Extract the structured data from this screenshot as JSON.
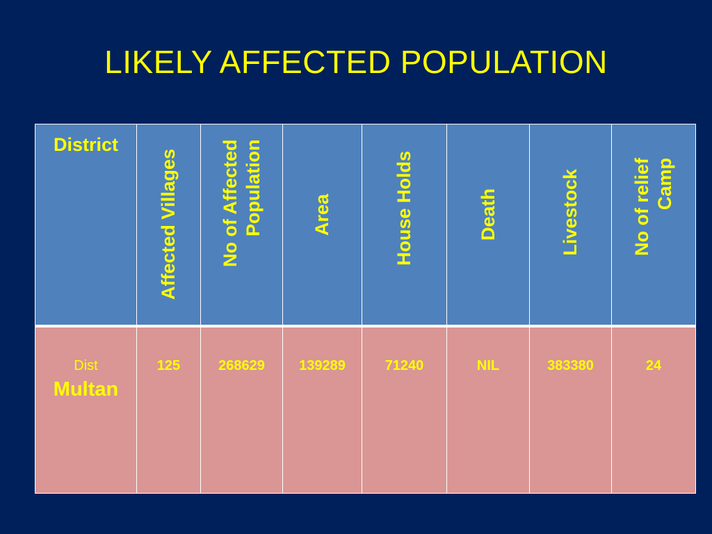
{
  "slide": {
    "title": "LIKELY AFFECTED POPULATION"
  },
  "table": {
    "headers": [
      "District",
      "Affected Villages",
      "No of Affected Population",
      "Area",
      "House Holds",
      "Death",
      "Livestock",
      "No of relief Camp"
    ],
    "row": {
      "district_prefix": "Dist",
      "district_name": "Multan",
      "values": [
        "125",
        "268629",
        "139289",
        "71240",
        "NIL",
        "383380",
        "24"
      ]
    }
  },
  "colors": {
    "background": "#00205b",
    "header_fill": "#4f81bd",
    "row_fill": "#d99694",
    "text": "#ffff00",
    "border": "#ffffff"
  }
}
